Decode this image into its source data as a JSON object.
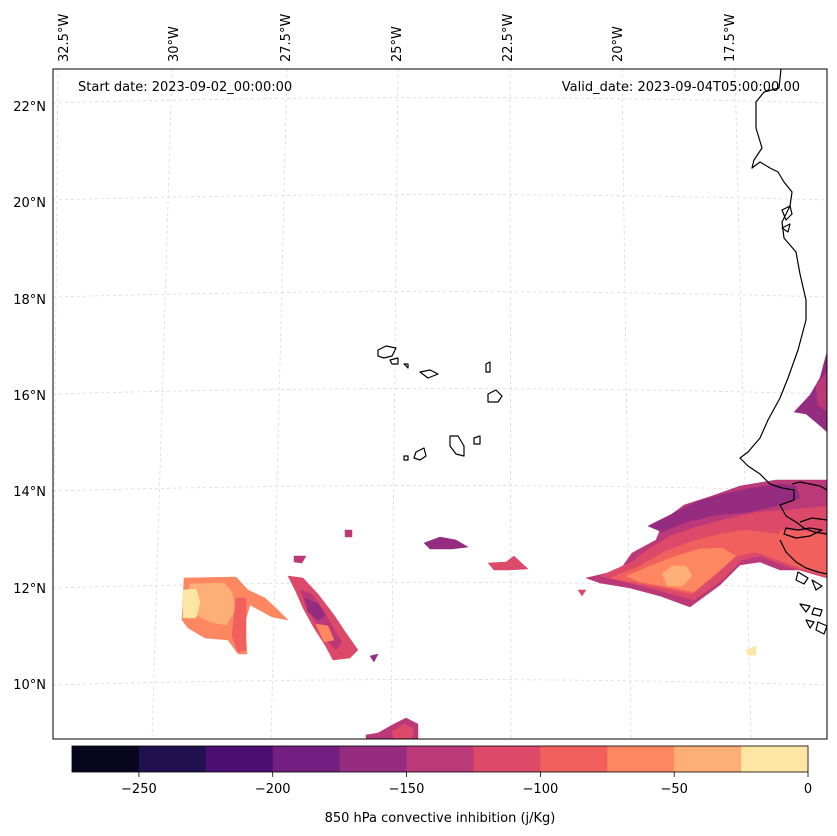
{
  "map": {
    "start_date": "Start date: 2023-09-02_00:00:00",
    "valid_date": "Valid_date: 2023-09-04T05:00:00.00",
    "lon_labels": [
      "32.5°W",
      "30°W",
      "27.5°W",
      "25°W",
      "22.5°W",
      "20°W",
      "17.5°W"
    ],
    "lat_labels": [
      "22°N",
      "20°N",
      "18°N",
      "16°N",
      "14°N",
      "12°N",
      "10°N"
    ]
  },
  "colorbar": {
    "label": "850 hPa convective inhibition (j/Kg)",
    "tick_labels": [
      "−250",
      "−200",
      "−150",
      "−100",
      "−50",
      "0"
    ],
    "levels": [
      -275,
      -250,
      -225,
      -200,
      -175,
      -150,
      -125,
      -100,
      -75,
      -50,
      -25,
      0
    ],
    "colors": [
      "#07061c",
      "#221150",
      "#4b0f74",
      "#721f81",
      "#962c80",
      "#bb3978",
      "#dd4968",
      "#f1605d",
      "#fc8761",
      "#feae77",
      "#fde6a3"
    ]
  },
  "legend_colors": {
    "c1": "#721f81",
    "c2": "#962c80",
    "c3": "#bb3978",
    "c4": "#dd4968",
    "c5": "#f1605d",
    "c6": "#fc8761",
    "c7": "#feae77",
    "c8": "#fde6a3"
  }
}
